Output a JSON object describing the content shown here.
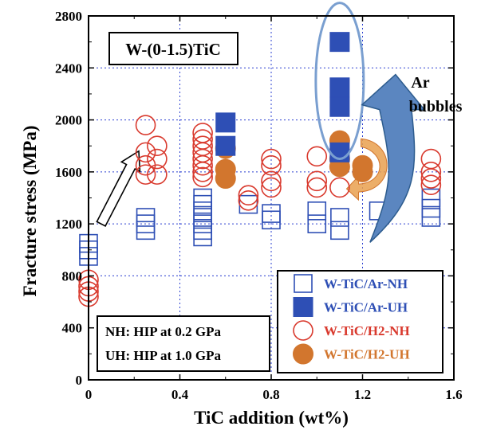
{
  "chart_data": {
    "type": "scatter",
    "xlabel": "TiC addition (wt%)",
    "ylabel": "Fracture stress (MPa)",
    "xlim": [
      0,
      1.6
    ],
    "ylim": [
      0,
      2800
    ],
    "xticks": [
      "0",
      "0.4",
      "0.8",
      "1.2",
      "1.6"
    ],
    "yticks": [
      "0",
      "400",
      "800",
      "1200",
      "1600",
      "2000",
      "2400",
      "2800"
    ],
    "grid": true,
    "legend_position": "bottom-right",
    "colors": {
      "blue": "#2e4fb5",
      "red": "#d93a2e",
      "orange": "#d2762e",
      "arrow_blue": "#5b86c0",
      "ellipse": "#7a9fd0"
    },
    "inset_title": "W-(0-1.5)TiC",
    "annotation": "Ar\nbubbles",
    "notes": [
      "NH: HIP at 0.2 GPa",
      "UH: HIP at 1.0 GPa"
    ],
    "series": [
      {
        "name": "W-TiC/Ar-NH",
        "marker": "open-square",
        "color": "#2e4fb5",
        "points": [
          [
            0,
            1050
          ],
          [
            0,
            1000
          ],
          [
            0,
            950
          ],
          [
            0.25,
            1250
          ],
          [
            0.25,
            1200
          ],
          [
            0.25,
            1150
          ],
          [
            0.5,
            1400
          ],
          [
            0.5,
            1350
          ],
          [
            0.5,
            1300
          ],
          [
            0.5,
            1250
          ],
          [
            0.5,
            1200
          ],
          [
            0.5,
            1150
          ],
          [
            0.5,
            1100
          ],
          [
            0.7,
            1350
          ],
          [
            0.8,
            1280
          ],
          [
            0.8,
            1230
          ],
          [
            1.0,
            1300
          ],
          [
            1.0,
            1200
          ],
          [
            1.1,
            1250
          ],
          [
            1.1,
            1150
          ],
          [
            1.27,
            1300
          ],
          [
            1.5,
            1400
          ],
          [
            1.5,
            1320
          ],
          [
            1.5,
            1250
          ]
        ]
      },
      {
        "name": "W-TiC/Ar-UH",
        "marker": "filled-square",
        "color": "#2e4fb5",
        "points": [
          [
            0.6,
            1980
          ],
          [
            0.6,
            1800
          ],
          [
            1.1,
            2600
          ],
          [
            1.1,
            2250
          ],
          [
            1.1,
            2100
          ],
          [
            1.1,
            1750
          ]
        ]
      },
      {
        "name": "W-TiC/H2-NH",
        "marker": "open-circle",
        "color": "#d93a2e",
        "points": [
          [
            0,
            770
          ],
          [
            0,
            720
          ],
          [
            0,
            680
          ],
          [
            0,
            640
          ],
          [
            0.25,
            1960
          ],
          [
            0.25,
            1750
          ],
          [
            0.25,
            1650
          ],
          [
            0.25,
            1580
          ],
          [
            0.3,
            1800
          ],
          [
            0.3,
            1700
          ],
          [
            0.3,
            1580
          ],
          [
            0.5,
            1900
          ],
          [
            0.5,
            1850
          ],
          [
            0.5,
            1800
          ],
          [
            0.5,
            1750
          ],
          [
            0.5,
            1700
          ],
          [
            0.5,
            1650
          ],
          [
            0.5,
            1600
          ],
          [
            0.5,
            1560
          ],
          [
            0.7,
            1420
          ],
          [
            0.7,
            1380
          ],
          [
            0.8,
            1700
          ],
          [
            0.8,
            1650
          ],
          [
            0.8,
            1530
          ],
          [
            0.8,
            1480
          ],
          [
            1.0,
            1720
          ],
          [
            1.0,
            1530
          ],
          [
            1.0,
            1480
          ],
          [
            1.1,
            1480
          ],
          [
            1.5,
            1700
          ],
          [
            1.5,
            1600
          ],
          [
            1.5,
            1550
          ],
          [
            1.5,
            1500
          ]
        ]
      },
      {
        "name": "W-TiC/H2-UH",
        "marker": "filled-circle",
        "color": "#d2762e",
        "points": [
          [
            0.6,
            1780
          ],
          [
            0.6,
            1620
          ],
          [
            0.6,
            1550
          ],
          [
            1.1,
            1840
          ],
          [
            1.1,
            1760
          ],
          [
            1.1,
            1700
          ],
          [
            1.1,
            1640
          ],
          [
            1.2,
            1650
          ],
          [
            1.2,
            1600
          ]
        ]
      }
    ]
  }
}
